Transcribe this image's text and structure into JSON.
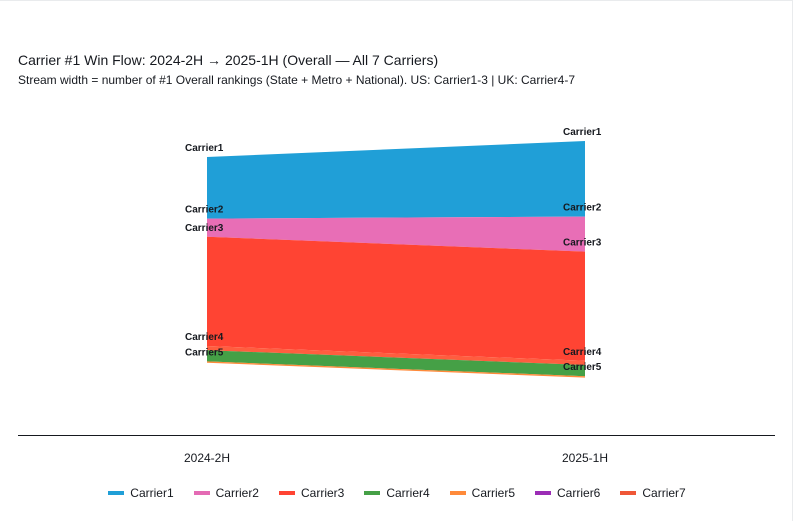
{
  "title": "Carrier #1 Win Flow: 2024-2H → 2025-1H (Overall — All 7 Carriers)",
  "subtitle": "Stream width = number of #1 Overall rankings (State + Metro + National). US: Carrier1-3 | UK: Carrier4-7",
  "chart_data": {
    "type": "area",
    "subtype": "stacked-stream",
    "x": [
      "2024-2H",
      "2025-1H"
    ],
    "series": [
      {
        "name": "Carrier1",
        "color": "#209fd7",
        "values": [
          44,
          54
        ]
      },
      {
        "name": "Carrier2",
        "color": "#e46bb4",
        "values": [
          0,
          0
        ]
      },
      {
        "name": "Carrier3",
        "color": "#e86eb6",
        "values": [
          13,
          25
        ]
      },
      {
        "name": "Carrier3",
        "color": "#ff4433",
        "values": [
          78,
          78
        ]
      },
      {
        "name": "Carrier4",
        "color": "#ff5d3f",
        "values": [
          3,
          3
        ]
      },
      {
        "name": "Carrier4",
        "color": "#45a046",
        "values": [
          8,
          8
        ]
      },
      {
        "name": "Carrier5",
        "color": "#ff8a3a",
        "values": [
          1,
          1
        ]
      },
      {
        "name": "Carrier6",
        "color": "#9b2db5",
        "values": [
          0,
          0
        ]
      },
      {
        "name": "Carrier7",
        "color": "#ef5737",
        "values": [
          0,
          0
        ]
      }
    ],
    "labels": [
      {
        "text": "Carrier1",
        "x": "2024-2H",
        "at": 0
      },
      {
        "text": "Carrier2",
        "x": "2024-2H",
        "at": 44
      },
      {
        "text": "Carrier3",
        "x": "2024-2H",
        "at": 57
      },
      {
        "text": "Carrier4",
        "x": "2024-2H",
        "at": 135
      },
      {
        "text": "Carrier5",
        "x": "2024-2H",
        "at": 146
      },
      {
        "text": "Carrier1",
        "x": "2025-1H",
        "at": 0
      },
      {
        "text": "Carrier2",
        "x": "2025-1H",
        "at": 54
      },
      {
        "text": "Carrier3",
        "x": "2025-1H",
        "at": 79
      },
      {
        "text": "Carrier4",
        "x": "2025-1H",
        "at": 157
      },
      {
        "text": "Carrier5",
        "x": "2025-1H",
        "at": 168
      }
    ],
    "legend": {
      "position": "bottom",
      "items": [
        {
          "name": "Carrier1",
          "color": "#209fd7"
        },
        {
          "name": "Carrier2",
          "color": "#e46bb4"
        },
        {
          "name": "Carrier3",
          "color": "#ff4433"
        },
        {
          "name": "Carrier4",
          "color": "#45a046"
        },
        {
          "name": "Carrier5",
          "color": "#ff8a3a"
        },
        {
          "name": "Carrier6",
          "color": "#9b2db5"
        },
        {
          "name": "Carrier7",
          "color": "#ef5737"
        }
      ]
    },
    "grid": false
  }
}
